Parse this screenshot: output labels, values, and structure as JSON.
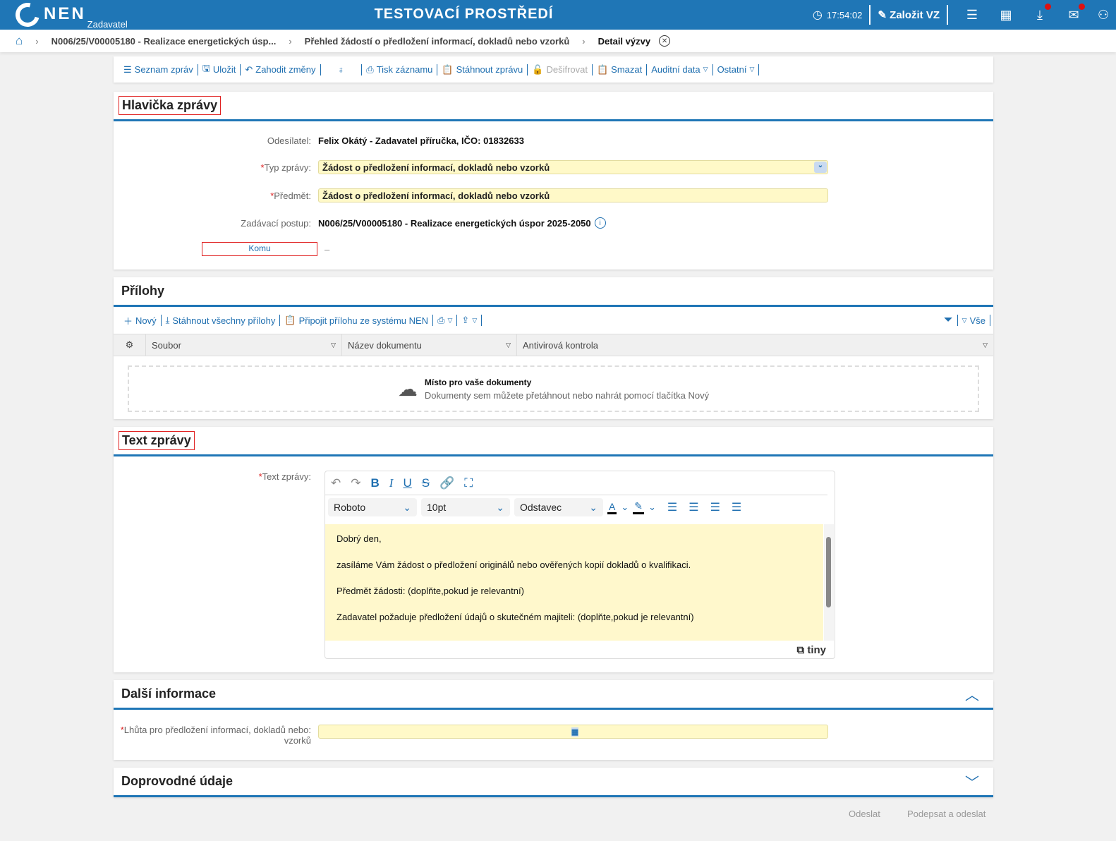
{
  "header": {
    "logo": "NEN",
    "logo_sub": "Zadavatel",
    "environment": "TESTOVACÍ PROSTŘEDÍ",
    "time": "17:54:02",
    "create_label": "Založit VZ",
    "icons": [
      "clock-icon",
      "edit-icon",
      "menu-icon",
      "calendar-icon",
      "download-icon",
      "mail-icon",
      "user-icon"
    ]
  },
  "breadcrumb": {
    "items": [
      "N006/25/V00005180 - Realizace energetických úsp...",
      "Přehled žádostí o předložení informací, dokladů nebo vzorků"
    ],
    "current": "Detail výzvy"
  },
  "toolbar": {
    "list": "Seznam zpráv",
    "save": "Uložit",
    "discard": "Zahodit změny",
    "print": "Tisk záznamu",
    "download": "Stáhnout zprávu",
    "decrypt": "Dešifrovat",
    "delete": "Smazat",
    "audit": "Auditní data",
    "other": "Ostatní"
  },
  "header_section": {
    "title": "Hlavička zprávy",
    "sender_label": "Odesílatel:",
    "sender": "Felix Okátý - Zadavatel příručka, IČO: 01832633",
    "type_label": "Typ zprávy:",
    "type": "Žádost o předložení informací, dokladů nebo vzorků",
    "subject_label": "Předmět:",
    "subject": "Žádost o předložení informací, dokladů nebo vzorků",
    "procedure_label": "Zadávací postup:",
    "procedure": "N006/25/V00005180 - Realizace energetických úspor 2025-2050",
    "to_label": "Komu",
    "to_value": "–"
  },
  "attachments": {
    "title": "Přílohy",
    "new": "Nový",
    "download_all": "Stáhnout všechny přílohy",
    "attach_nen": "Připojit přílohu ze systému NEN",
    "filter_all": "Vše",
    "columns": [
      "Soubor",
      "Název dokumentu",
      "Antivirová kontrola"
    ],
    "drop_title": "Místo pro vaše dokumenty",
    "drop_hint": "Dokumenty sem můžete přetáhnout nebo nahrát pomocí tlačítka Nový"
  },
  "message": {
    "title": "Text zprávy",
    "label": "Text zprávy:",
    "font": "Roboto",
    "size": "10pt",
    "block": "Odstavec",
    "paragraphs": [
      "Dobrý den,",
      "zasíláme Vám žádost o předložení originálů nebo ověřených kopií dokladů o kvalifikaci.",
      "Předmět žádosti: (doplňte,pokud je relevantní)",
      "Zadavatel požaduje předložení údajů o skutečném majiteli: (doplňte,pokud je relevantní)"
    ],
    "brand": "tiny"
  },
  "more_info": {
    "title": "Další informace",
    "deadline_label": "Lhůta pro předložení informací, dokladů nebo:",
    "deadline_label2": "vzorků",
    "deadline": ""
  },
  "accompanying": {
    "title": "Doprovodné údaje"
  },
  "footer": {
    "send": "Odeslat",
    "sign_send": "Podepsat a odeslat"
  },
  "colors": {
    "brand": "#1f76b6",
    "required": "#d22222",
    "input_bg": "#fff9c8"
  }
}
